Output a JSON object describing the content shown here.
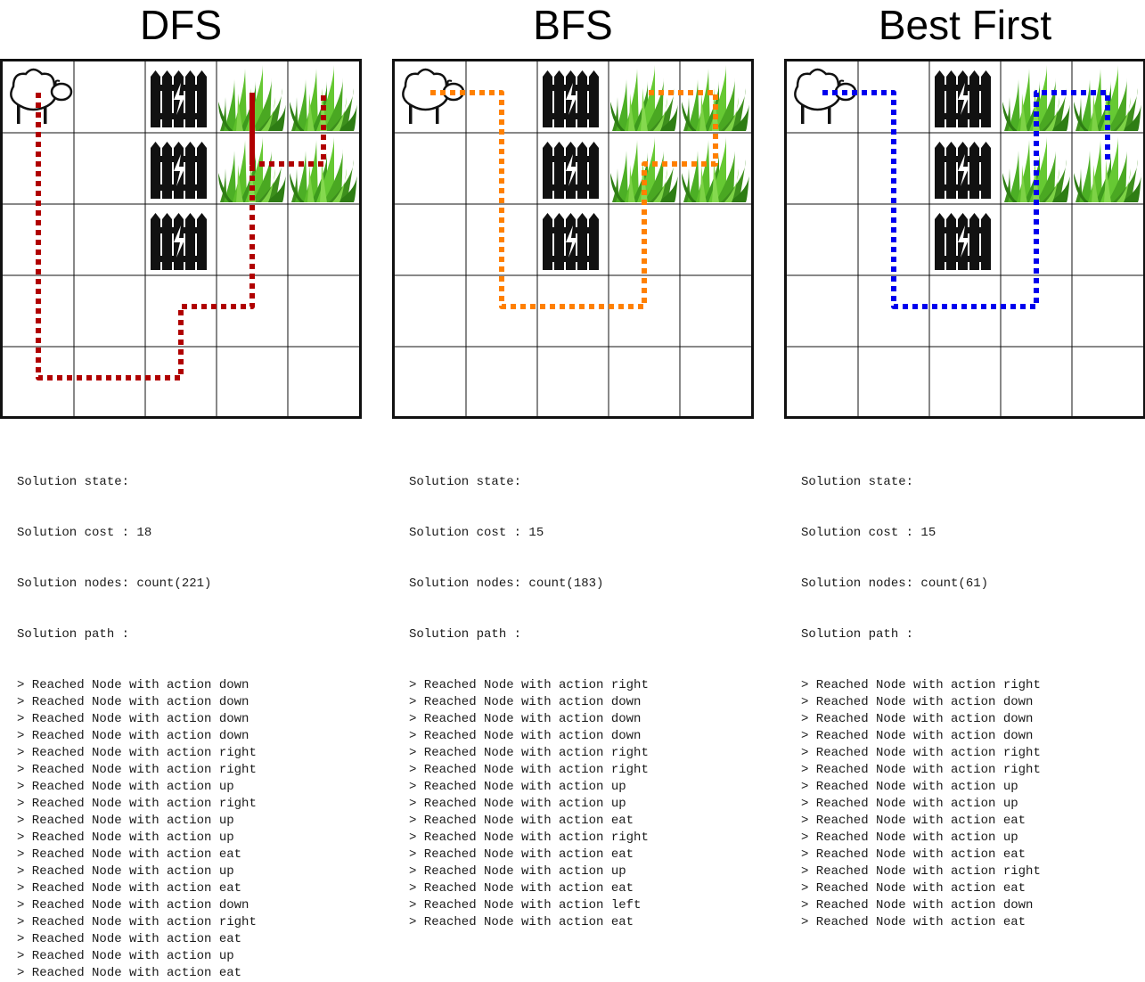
{
  "panels": [
    {
      "title": "DFS",
      "path_color": "#b00000",
      "fences": [
        [
          0,
          2
        ],
        [
          1,
          2
        ],
        [
          2,
          2
        ]
      ],
      "grass": [
        [
          0,
          3
        ],
        [
          0,
          4
        ],
        [
          1,
          3
        ],
        [
          1,
          4
        ]
      ],
      "sheep": [
        0,
        0
      ],
      "log": {
        "state_label": "Solution state:",
        "cost_line": "Solution cost : 18",
        "nodes_line": "Solution nodes: count(221)",
        "path_label": "Solution path :",
        "steps": [
          "> Reached Node with action down",
          "> Reached Node with action down",
          "> Reached Node with action down",
          "> Reached Node with action down",
          "> Reached Node with action right",
          "> Reached Node with action right",
          "> Reached Node with action up",
          "> Reached Node with action right",
          "> Reached Node with action up",
          "> Reached Node with action up",
          "> Reached Node with action eat",
          "> Reached Node with action up",
          "> Reached Node with action eat",
          "> Reached Node with action down",
          "> Reached Node with action right",
          "> Reached Node with action eat",
          "> Reached Node with action up",
          "> Reached Node with action eat"
        ]
      }
    },
    {
      "title": "BFS",
      "path_color": "#ff8000",
      "fences": [
        [
          0,
          2
        ],
        [
          1,
          2
        ],
        [
          2,
          2
        ]
      ],
      "grass": [
        [
          0,
          3
        ],
        [
          0,
          4
        ],
        [
          1,
          3
        ],
        [
          1,
          4
        ]
      ],
      "sheep": [
        0,
        0
      ],
      "log": {
        "state_label": "Solution state:",
        "cost_line": "Solution cost : 15",
        "nodes_line": "Solution nodes: count(183)",
        "path_label": "Solution path :",
        "steps": [
          "> Reached Node with action right",
          "> Reached Node with action down",
          "> Reached Node with action down",
          "> Reached Node with action down",
          "> Reached Node with action right",
          "> Reached Node with action right",
          "> Reached Node with action up",
          "> Reached Node with action up",
          "> Reached Node with action eat",
          "> Reached Node with action right",
          "> Reached Node with action eat",
          "> Reached Node with action up",
          "> Reached Node with action eat",
          "> Reached Node with action left",
          "> Reached Node with action eat"
        ]
      }
    },
    {
      "title": "Best First",
      "path_color": "#0000ee",
      "fences": [
        [
          0,
          2
        ],
        [
          1,
          2
        ],
        [
          2,
          2
        ]
      ],
      "grass": [
        [
          0,
          3
        ],
        [
          0,
          4
        ],
        [
          1,
          3
        ],
        [
          1,
          4
        ]
      ],
      "sheep": [
        0,
        0
      ],
      "log": {
        "state_label": "Solution state:",
        "cost_line": "Solution cost : 15",
        "nodes_line": "Solution nodes: count(61)",
        "path_label": "Solution path :",
        "steps": [
          "> Reached Node with action right",
          "> Reached Node with action down",
          "> Reached Node with action down",
          "> Reached Node with action down",
          "> Reached Node with action right",
          "> Reached Node with action right",
          "> Reached Node with action up",
          "> Reached Node with action up",
          "> Reached Node with action eat",
          "> Reached Node with action up",
          "> Reached Node with action eat",
          "> Reached Node with action right",
          "> Reached Node with action eat",
          "> Reached Node with action down",
          "> Reached Node with action eat"
        ]
      }
    }
  ]
}
